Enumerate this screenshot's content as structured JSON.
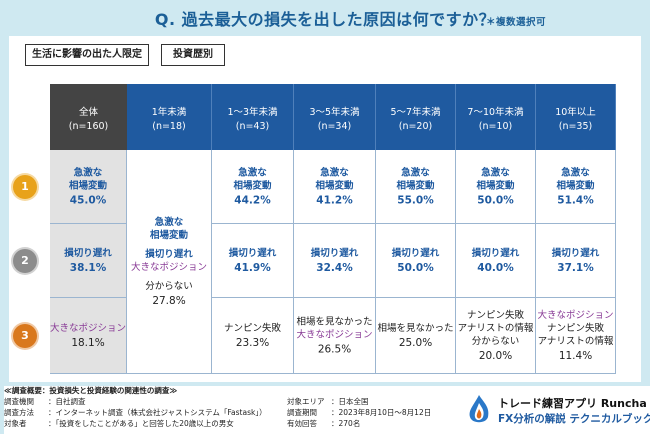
{
  "title": "Q. 過去最大の損失を出した原因は何ですか？",
  "title_note": "＊複数選択可",
  "filter_tags": [
    "生活に影響の出た人限定",
    "投資歴別"
  ],
  "chart_data": {
    "type": "table",
    "columns": [
      {
        "label": "全体",
        "n": "(n=160)"
      },
      {
        "label": "1年未満",
        "n": "(n=18)"
      },
      {
        "label": "1～3年未満",
        "n": "(n=43)"
      },
      {
        "label": "3～5年未満",
        "n": "(n=34)"
      },
      {
        "label": "5～7年未満",
        "n": "(n=20)"
      },
      {
        "label": "7～10年未満",
        "n": "(n=10)"
      },
      {
        "label": "10年以上",
        "n": "(n=35)"
      }
    ],
    "ranks": [
      "1",
      "2",
      "3"
    ],
    "rows": [
      {
        "rank": "1",
        "cells": [
          {
            "lines": [
              "急激な",
              "相場変動"
            ],
            "value": "45.0%"
          },
          {
            "lines": [
              "急激な",
              "相場変動",
              "損切り遅れ",
              "大きなポジション",
              "分からない"
            ],
            "value": "27.8%"
          },
          {
            "lines": [
              "急激な",
              "相場変動"
            ],
            "value": "44.2%"
          },
          {
            "lines": [
              "急激な",
              "相場変動"
            ],
            "value": "41.2%"
          },
          {
            "lines": [
              "急激な",
              "相場変動"
            ],
            "value": "55.0%"
          },
          {
            "lines": [
              "急激な",
              "相場変動"
            ],
            "value": "50.0%"
          },
          {
            "lines": [
              "急激な",
              "相場変動"
            ],
            "value": "51.4%"
          }
        ]
      },
      {
        "rank": "2",
        "cells": [
          {
            "lines": [
              "損切り遅れ"
            ],
            "value": "38.1%"
          },
          null,
          {
            "lines": [
              "損切り遅れ"
            ],
            "value": "41.9%"
          },
          {
            "lines": [
              "損切り遅れ"
            ],
            "value": "32.4%"
          },
          {
            "lines": [
              "損切り遅れ"
            ],
            "value": "50.0%"
          },
          {
            "lines": [
              "損切り遅れ"
            ],
            "value": "40.0%"
          },
          {
            "lines": [
              "損切り遅れ"
            ],
            "value": "37.1%"
          }
        ]
      },
      {
        "rank": "3",
        "cells": [
          {
            "lines": [
              "大きなポジション"
            ],
            "value": "18.1%"
          },
          null,
          {
            "lines": [
              "ナンピン失敗"
            ],
            "value": "23.3%"
          },
          {
            "lines": [
              "相場を見なかった",
              "大きなポジション"
            ],
            "value": "26.5%"
          },
          {
            "lines": [
              "相場を見なかった"
            ],
            "value": "25.0%"
          },
          {
            "lines": [
              "ナンピン失敗",
              "アナリストの情報",
              "分からない"
            ],
            "value": "20.0%"
          },
          {
            "lines": [
              "大きなポジション",
              "ナンピン失敗",
              "アナリストの情報"
            ],
            "value": "11.4%"
          }
        ]
      }
    ]
  },
  "footer": {
    "heading": "≪調査概要：投資損失と投資経験の関連性の調査≫",
    "items": [
      {
        "label": "調査機関",
        "value": "：自社調査"
      },
      {
        "label": "調査方法",
        "value": "：インターネット調査（株式会社ジャストシステム「Fastask」）"
      },
      {
        "label": "対象者",
        "value": "：「投資をしたことがある」と回答した20歳以上の男女"
      },
      {
        "label": "対象エリア",
        "value": "：日本全国"
      },
      {
        "label": "調査期間",
        "value": "：2023年8月10日～8月12日"
      },
      {
        "label": "有効回答",
        "value": "：270名"
      }
    ]
  },
  "brand": {
    "line1": "トレード練習アプリ Runcha",
    "line2": "FX分析の解説 テクニカルブック"
  },
  "colors": {
    "header_blue": "#1f5aa0",
    "header_all": "#444444",
    "text_blue": "#1f5aa0",
    "text_purple": "#8a3d97",
    "background": "#cfe9f1",
    "medal_gold": "#e8a21a",
    "medal_silver": "#8c8c8c",
    "medal_bronze": "#d9781d"
  }
}
